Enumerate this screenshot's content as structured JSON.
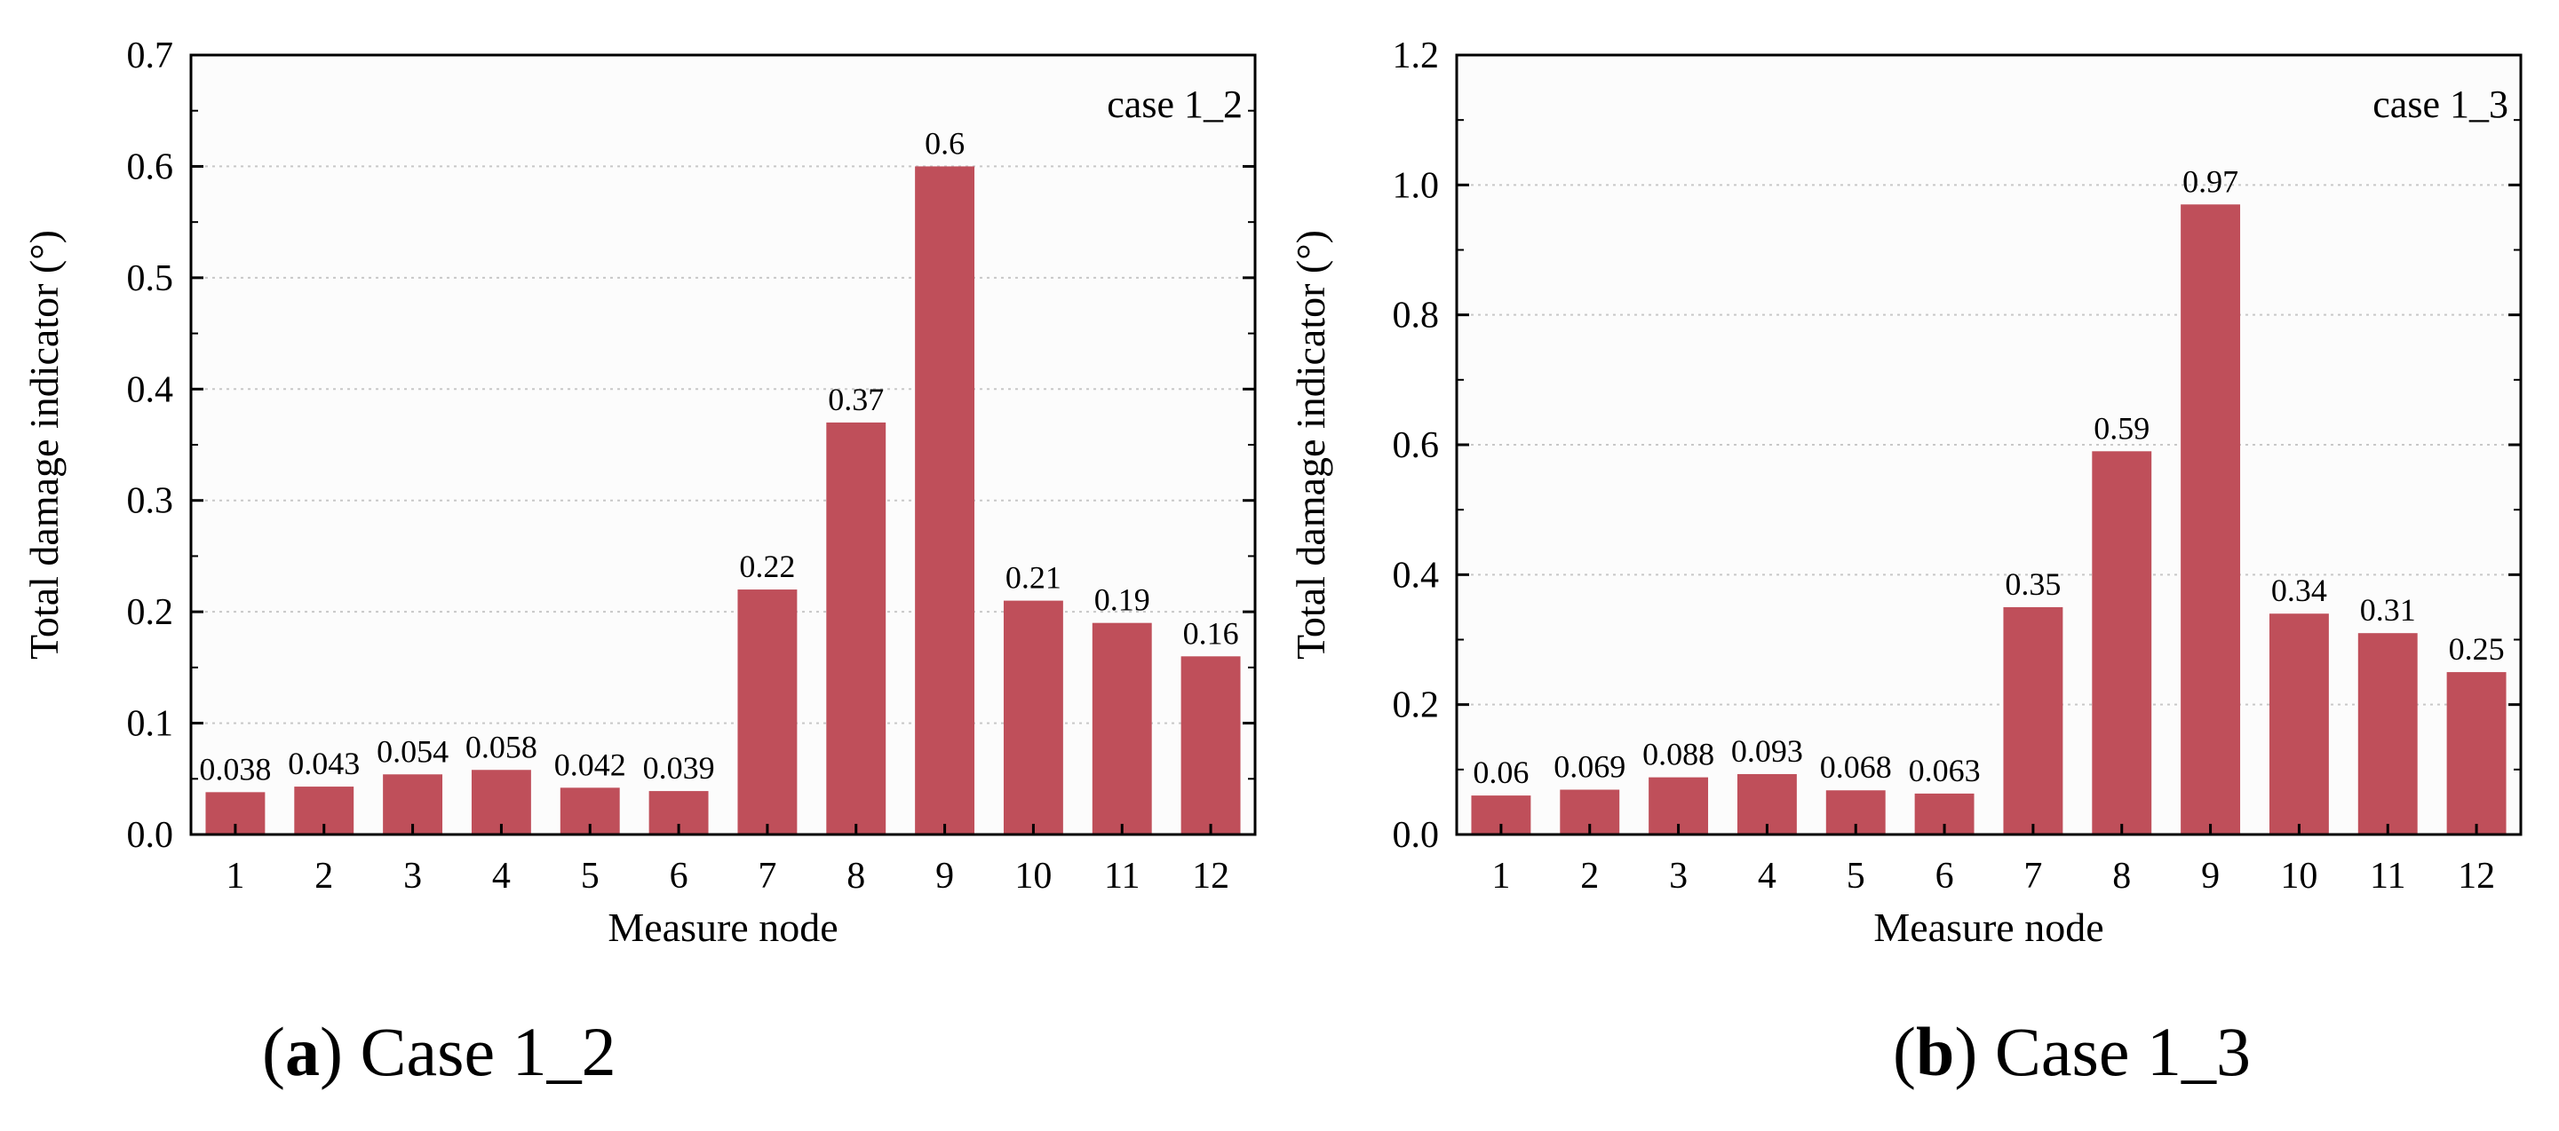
{
  "colors": {
    "bar": "#bf4f5a",
    "grid": "#c8c8c8",
    "axis": "#000000",
    "plot_bg": "#fcfcfc"
  },
  "chart_data": [
    {
      "type": "bar",
      "title": "",
      "annotation": "case 1_2",
      "xlabel": "Measure node",
      "ylabel": "Total damage indicator (°)",
      "categories": [
        "1",
        "2",
        "3",
        "4",
        "5",
        "6",
        "7",
        "8",
        "9",
        "10",
        "11",
        "12"
      ],
      "values": [
        0.038,
        0.043,
        0.054,
        0.058,
        0.042,
        0.039,
        0.22,
        0.37,
        0.6,
        0.21,
        0.19,
        0.16
      ],
      "value_labels": [
        "0.038",
        "0.043",
        "0.054",
        "0.058",
        "0.042",
        "0.039",
        "0.22",
        "0.37",
        "0.6",
        "0.21",
        "0.19",
        "0.16"
      ],
      "ylim": [
        0,
        0.7
      ],
      "yticks": [
        0,
        0.1,
        0.2,
        0.3,
        0.4,
        0.5,
        0.6,
        0.7
      ],
      "ytick_labels": [
        "0.0",
        "0.1",
        "0.2",
        "0.3",
        "0.4",
        "0.5",
        "0.6",
        "0.7"
      ],
      "grid": true
    },
    {
      "type": "bar",
      "title": "",
      "annotation": "case 1_3",
      "xlabel": "Measure node",
      "ylabel": "Total damage indicator (°)",
      "categories": [
        "1",
        "2",
        "3",
        "4",
        "5",
        "6",
        "7",
        "8",
        "9",
        "10",
        "11",
        "12"
      ],
      "values": [
        0.06,
        0.069,
        0.088,
        0.093,
        0.068,
        0.063,
        0.35,
        0.59,
        0.97,
        0.34,
        0.31,
        0.25
      ],
      "value_labels": [
        "0.06",
        "0.069",
        "0.088",
        "0.093",
        "0.068",
        "0.063",
        "0.35",
        "0.59",
        "0.97",
        "0.34",
        "0.31",
        "0.25"
      ],
      "ylim": [
        0,
        1.2
      ],
      "yticks": [
        0,
        0.2,
        0.4,
        0.6,
        0.8,
        1.0,
        1.2
      ],
      "ytick_labels": [
        "0.0",
        "0.2",
        "0.4",
        "0.6",
        "0.8",
        "1.0",
        "1.2"
      ],
      "grid": true
    }
  ],
  "captions": [
    {
      "letter": "a",
      "text": " Case 1_2"
    },
    {
      "letter": "b",
      "text": " Case 1_3"
    }
  ]
}
